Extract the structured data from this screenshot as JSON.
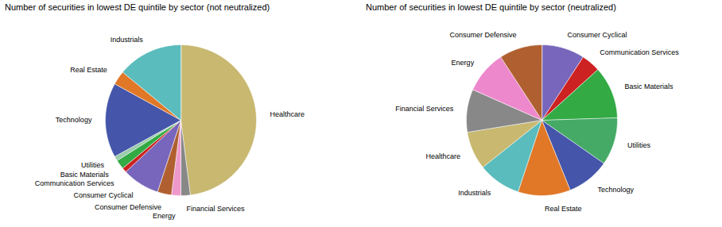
{
  "chart_data": [
    {
      "type": "pie",
      "title": "Number of securities in lowest DE quintile by sector (not neutralized)",
      "categories": [
        "Healthcare",
        "Financial Services",
        "Energy",
        "Consumer Defensive",
        "Consumer Cyclical",
        "Communication Services",
        "Basic Materials",
        "Utilities",
        "Technology",
        "Real Estate",
        "Industrials"
      ],
      "values": [
        48,
        2,
        2,
        3,
        8,
        1,
        2,
        1,
        16,
        3,
        14
      ],
      "colors": [
        "#c8b870",
        "#888888",
        "#ee99cc",
        "#b06030",
        "#7766bb",
        "#cc2222",
        "#33aa44",
        "#99ccaa",
        "#4455aa",
        "#e07828",
        "#5abcbc"
      ]
    },
    {
      "type": "pie",
      "title": "Number of securities in lowest DE quintile by sector (neutralized)",
      "categories": [
        "Consumer Cyclical",
        "Communication Services",
        "Basic Materials",
        "Utilities",
        "Technology",
        "Real Estate",
        "Industrials",
        "Healthcare",
        "Financial Services",
        "Energy",
        "Consumer Defensive"
      ],
      "values": [
        9,
        4,
        11,
        10,
        9,
        11,
        9,
        8,
        9,
        9,
        9
      ],
      "colors": [
        "#7766bb",
        "#cc2222",
        "#33aa44",
        "#44aa66",
        "#4455aa",
        "#e07828",
        "#5abcbc",
        "#c8b870",
        "#888888",
        "#ee88cc",
        "#b06030"
      ]
    }
  ]
}
